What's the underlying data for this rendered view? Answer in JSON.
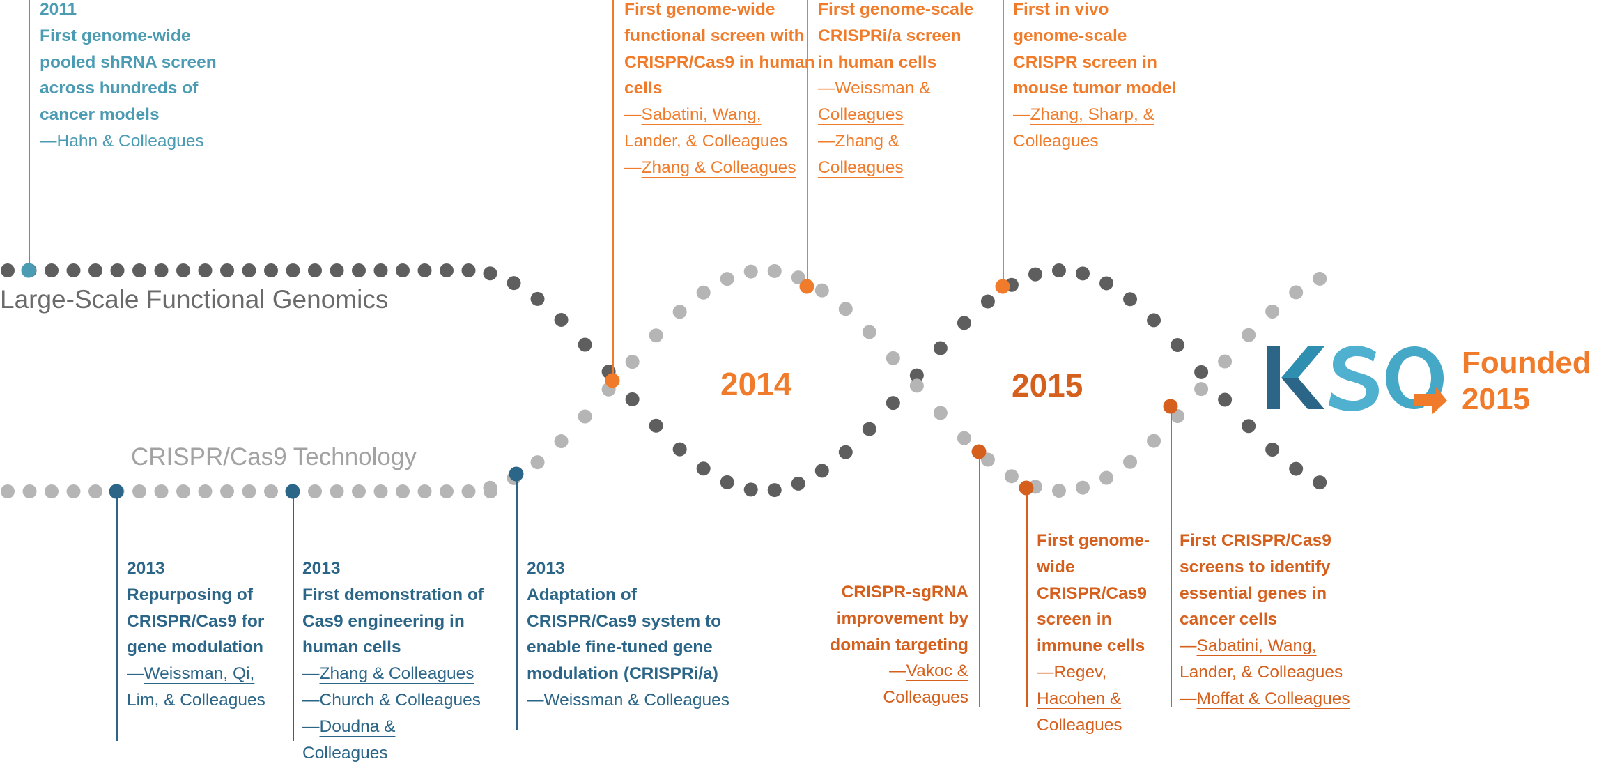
{
  "colors": {
    "dark_dot": "#5e5e5e",
    "light_dot": "#b5b5b5",
    "teal": "#4b9bb3",
    "blue": "#2b6587",
    "orange": "#f07c2b",
    "dark_orange": "#d5601d"
  },
  "tracks": {
    "functional_genomics": "Large-Scale Functional Genomics",
    "crispr": "CRISPR/Cas9 Technology"
  },
  "years": {
    "y2014": "2014",
    "y2015": "2015"
  },
  "logo": {
    "text": "KSQ",
    "founded_line1": "Founded",
    "founded_line2": "2015"
  },
  "top_annotations": [
    {
      "year": "2011",
      "text": "First genome-wide pooled shRNA screen across hundreds of cancer models",
      "credits": [
        "Hahn & Colleagues"
      ]
    },
    {
      "text": "First genome-wide functional screen with CRISPR/Cas9 in human cells",
      "credits": [
        "Sabatini, Wang, Lander, & Colleagues",
        "Zhang & Colleagues"
      ]
    },
    {
      "text": "First genome-scale CRISPRi/a screen in human cells",
      "credits": [
        "Weissman & Colleagues",
        "Zhang & Colleagues"
      ]
    },
    {
      "text": "First in vivo genome-scale CRISPR screen in mouse tumor model",
      "credits": [
        "Zhang, Sharp, & Colleagues"
      ]
    }
  ],
  "bottom_annotations": [
    {
      "year": "2013",
      "text": "Repurposing of CRISPR/Cas9 for gene modulation",
      "credits": [
        "Weissman, Qi, Lim, & Colleagues"
      ]
    },
    {
      "year": "2013",
      "text": "First demonstration of Cas9 engineering in human cells",
      "credits": [
        "Zhang & Colleagues",
        "Church & Colleagues",
        "Doudna & Colleagues"
      ]
    },
    {
      "year": "2013",
      "text": "Adaptation of CRISPR/Cas9 system to enable fine-tuned gene modulation (CRISPRi/a)",
      "credits": [
        "Weissman & Colleagues"
      ]
    },
    {
      "text": "CRISPR-sgRNA improvement by domain targeting",
      "credits": [
        "Vakoc & Colleagues"
      ]
    },
    {
      "text": "First genome-wide CRISPR/Cas9 screen in immune cells",
      "credits": [
        "Regev, Hacohen & Colleagues"
      ]
    },
    {
      "text": "First CRISPR/Cas9 screens to identify essential genes in cancer cells",
      "credits": [
        "Sabatini, Wang, Lander, & Colleagues",
        "Moffat & Colleagues"
      ]
    }
  ]
}
